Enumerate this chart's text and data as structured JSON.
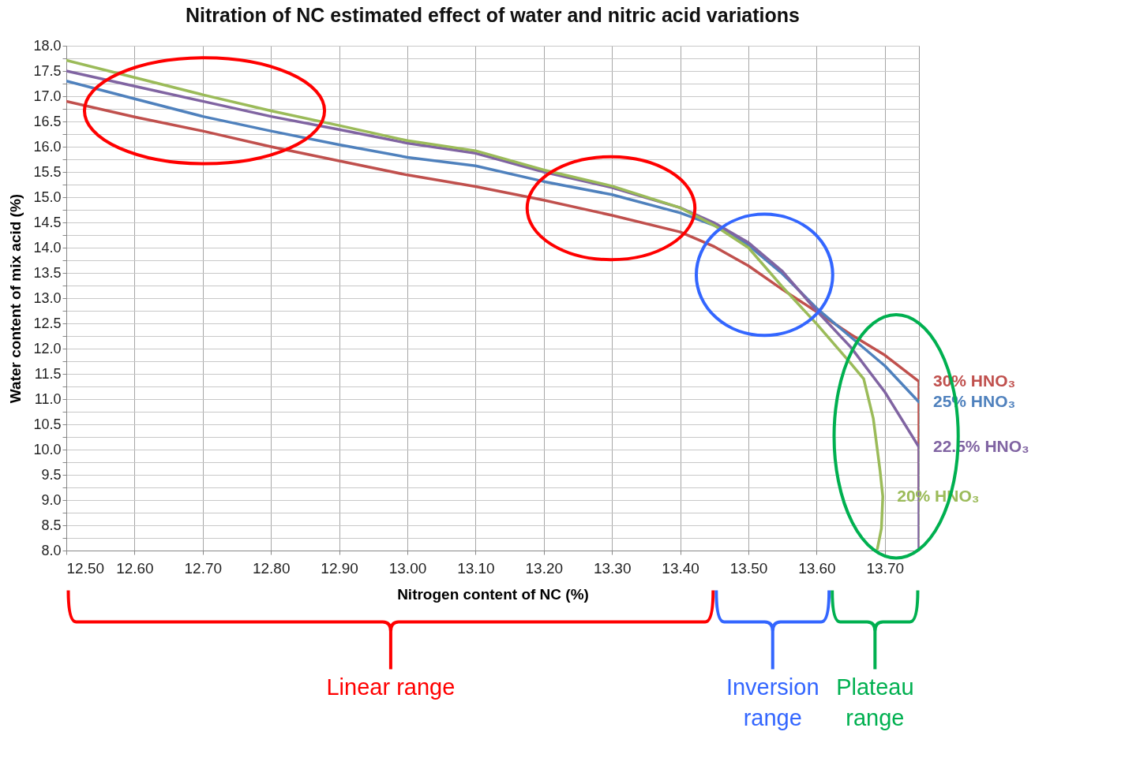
{
  "chart_data": {
    "type": "line",
    "title": "Nitration of NC estimated effect of water and nitric acid variations",
    "xlabel": "Nitrogen content of NC (%)",
    "ylabel": "Water content of mix acid (%)",
    "xlim": [
      12.5,
      13.75
    ],
    "ylim": [
      8,
      18
    ],
    "xticks": [
      {
        "value": 12.5,
        "label": "12.50"
      },
      {
        "value": 12.6,
        "label": "12.60"
      },
      {
        "value": 12.7,
        "label": "12.70"
      },
      {
        "value": 12.8,
        "label": "12.80"
      },
      {
        "value": 12.9,
        "label": "12.90"
      },
      {
        "value": 13.0,
        "label": "13.00"
      },
      {
        "value": 13.1,
        "label": "13.10"
      },
      {
        "value": 13.2,
        "label": "13.20"
      },
      {
        "value": 13.3,
        "label": "13.30"
      },
      {
        "value": 13.4,
        "label": "13.40"
      },
      {
        "value": 13.5,
        "label": "13.50"
      },
      {
        "value": 13.6,
        "label": "13.60"
      },
      {
        "value": 13.7,
        "label": "13.70"
      }
    ],
    "yticks": [
      {
        "value": 8,
        "label": "8.0"
      },
      {
        "value": 8.25,
        "label": null
      },
      {
        "value": 8.5,
        "label": "8.5"
      },
      {
        "value": 8.75,
        "label": null
      },
      {
        "value": 9,
        "label": "9.0"
      },
      {
        "value": 9.25,
        "label": null
      },
      {
        "value": 9.5,
        "label": "9.5"
      },
      {
        "value": 9.75,
        "label": null
      },
      {
        "value": 10,
        "label": "10.0"
      },
      {
        "value": 10.25,
        "label": null
      },
      {
        "value": 10.5,
        "label": "10.5"
      },
      {
        "value": 10.75,
        "label": null
      },
      {
        "value": 11,
        "label": "11.0"
      },
      {
        "value": 11.25,
        "label": null
      },
      {
        "value": 11.5,
        "label": "11.5"
      },
      {
        "value": 11.75,
        "label": null
      },
      {
        "value": 12,
        "label": "12.0"
      },
      {
        "value": 12.25,
        "label": null
      },
      {
        "value": 12.5,
        "label": "12.5"
      },
      {
        "value": 12.75,
        "label": null
      },
      {
        "value": 13,
        "label": "13.0"
      },
      {
        "value": 13.25,
        "label": null
      },
      {
        "value": 13.5,
        "label": "13.5"
      },
      {
        "value": 13.75,
        "label": null
      },
      {
        "value": 14,
        "label": "14.0"
      },
      {
        "value": 14.25,
        "label": null
      },
      {
        "value": 14.5,
        "label": "14.5"
      },
      {
        "value": 14.75,
        "label": null
      },
      {
        "value": 15,
        "label": "15.0"
      },
      {
        "value": 15.25,
        "label": null
      },
      {
        "value": 15.5,
        "label": "15.5"
      },
      {
        "value": 15.75,
        "label": null
      },
      {
        "value": 16,
        "label": "16.0"
      },
      {
        "value": 16.25,
        "label": null
      },
      {
        "value": 16.5,
        "label": "16.5"
      },
      {
        "value": 16.75,
        "label": null
      },
      {
        "value": 17,
        "label": "17.0"
      },
      {
        "value": 17.25,
        "label": null
      },
      {
        "value": 17.5,
        "label": "17.5"
      },
      {
        "value": 17.75,
        "label": null
      },
      {
        "value": 18,
        "label": "18.0"
      }
    ],
    "grid": true,
    "line_style": "solid",
    "series": [
      {
        "name": "30% HNO₃",
        "color": "#c0504d",
        "x": [
          12.5,
          12.6,
          12.7,
          12.8,
          12.9,
          13.0,
          13.1,
          13.2,
          13.3,
          13.4,
          13.45,
          13.5,
          13.55,
          13.6,
          13.65,
          13.7,
          13.75,
          13.75
        ],
        "values": [
          16.9,
          16.59,
          16.31,
          16.0,
          15.72,
          15.44,
          15.21,
          14.94,
          14.64,
          14.31,
          14.02,
          13.64,
          13.17,
          12.73,
          12.28,
          11.87,
          11.35,
          9.2
        ]
      },
      {
        "name": "25% HNO₃",
        "color": "#4f81bd",
        "x": [
          12.5,
          12.6,
          12.7,
          12.8,
          12.9,
          13.0,
          13.1,
          13.2,
          13.3,
          13.4,
          13.45,
          13.5,
          13.55,
          13.6,
          13.65,
          13.7,
          13.75
        ],
        "values": [
          17.3,
          16.95,
          16.6,
          16.31,
          16.04,
          15.79,
          15.62,
          15.31,
          15.05,
          14.69,
          14.44,
          14.05,
          13.48,
          12.8,
          12.23,
          11.66,
          10.94
        ]
      },
      {
        "name": "22.5% HNO₃",
        "color": "#8064a2",
        "x": [
          12.5,
          12.6,
          12.7,
          12.8,
          12.9,
          13.0,
          13.1,
          13.2,
          13.3,
          13.4,
          13.45,
          13.5,
          13.55,
          13.6,
          13.65,
          13.7,
          13.75,
          13.75
        ],
        "values": [
          17.5,
          17.2,
          16.9,
          16.6,
          16.34,
          16.07,
          15.87,
          15.5,
          15.19,
          14.79,
          14.49,
          14.1,
          13.53,
          12.75,
          12.03,
          11.14,
          10.05,
          8.0
        ]
      },
      {
        "name": "20% HNO₃",
        "color": "#9bbb59",
        "x": [
          12.5,
          12.6,
          12.7,
          12.8,
          12.9,
          13.0,
          13.1,
          13.2,
          13.3,
          13.4,
          13.45,
          13.5,
          13.55,
          13.6,
          13.65,
          13.669,
          13.683,
          13.693,
          13.697,
          13.695,
          13.689
        ],
        "values": [
          17.71,
          17.37,
          17.03,
          16.71,
          16.42,
          16.12,
          15.92,
          15.54,
          15.22,
          14.79,
          14.44,
          14.0,
          13.22,
          12.49,
          11.71,
          11.4,
          10.62,
          9.58,
          9.07,
          8.44,
          8.03
        ]
      }
    ],
    "annotations": [
      "Linear range",
      "Inversion range",
      "Plateau range"
    ]
  }
}
